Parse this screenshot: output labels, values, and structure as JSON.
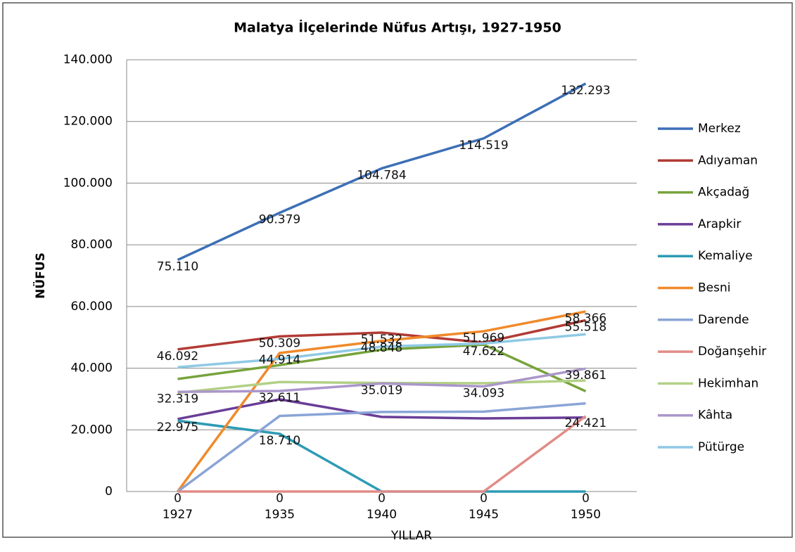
{
  "chart_data": {
    "type": "line",
    "title": "Malatya İlçelerinde Nüfus Artışı, 1927-1950",
    "x_label": "YILLAR",
    "y_label": "NÜFUS",
    "categories": [
      "1927",
      "1935",
      "1940",
      "1945",
      "1950"
    ],
    "ylim": [
      0,
      140000
    ],
    "yticks": [
      0,
      {
        "value": 20000,
        "label": "20.000"
      },
      {
        "value": 40000,
        "label": "40.000"
      },
      {
        "value": 60000,
        "label": "60.000"
      },
      {
        "value": 80000,
        "label": "80.000"
      },
      {
        "value": 100000,
        "label": "100.000"
      },
      {
        "value": 120000,
        "label": "120.000"
      },
      {
        "value": 140000,
        "label": "140.000"
      }
    ],
    "grid": true,
    "legend": "right",
    "series": [
      {
        "name": "Merkez",
        "color": "#3d6fb6",
        "values": [
          75110,
          90379,
          104784,
          114519,
          132293
        ],
        "value_labels": [
          "75.110",
          "90.379",
          "104.784",
          "114.519",
          "132.293"
        ]
      },
      {
        "name": "Adıyaman",
        "color": "#b23b35",
        "values": [
          46092,
          50309,
          51532,
          48300,
          55518
        ],
        "value_labels": [
          "46.092",
          "50.309",
          "51.532",
          null,
          "55.518"
        ]
      },
      {
        "name": "Akçadağ",
        "color": "#77a33b",
        "values": [
          36500,
          41000,
          46000,
          47622,
          32500
        ],
        "value_labels": [
          null,
          null,
          null,
          "47.622",
          null
        ]
      },
      {
        "name": "Arapkir",
        "color": "#6a3d97",
        "values": [
          23500,
          29900,
          24200,
          23700,
          24000
        ],
        "value_labels": [
          null,
          null,
          null,
          null,
          null
        ]
      },
      {
        "name": "Kemaliye",
        "color": "#2e9bb4",
        "values": [
          22975,
          18710,
          0,
          0,
          0
        ],
        "value_labels": [
          "22.975",
          "18.710",
          "0",
          null,
          "0"
        ]
      },
      {
        "name": "Besni",
        "color": "#f08a2a",
        "values": [
          0,
          44914,
          48848,
          51969,
          58366
        ],
        "value_labels": [
          "0",
          "44.914",
          "48.848",
          "51.969",
          "58.366"
        ]
      },
      {
        "name": "Darende",
        "color": "#8aa5d6",
        "values": [
          0,
          24500,
          25800,
          25900,
          28600
        ],
        "value_labels": [
          null,
          null,
          null,
          null,
          null
        ]
      },
      {
        "name": "Doğanşehir",
        "color": "#e08c88",
        "values": [
          0,
          0,
          0,
          0,
          24421
        ],
        "value_labels": [
          null,
          "0",
          null,
          "0",
          "24.421"
        ]
      },
      {
        "name": "Hekimhan",
        "color": "#b2d086",
        "values": [
          32000,
          35500,
          35200,
          35100,
          36000
        ],
        "value_labels": [
          null,
          null,
          null,
          null,
          null
        ]
      },
      {
        "name": "Kâhta",
        "color": "#ab96cb",
        "values": [
          32319,
          32611,
          35019,
          34093,
          39861
        ],
        "value_labels": [
          "32.319",
          "32.611",
          "35.019",
          "34.093",
          "39.861"
        ]
      },
      {
        "name": "Pütürge",
        "color": "#8fc9e4",
        "values": [
          40300,
          43000,
          47000,
          48000,
          51000
        ],
        "value_labels": [
          null,
          null,
          null,
          null,
          null
        ]
      }
    ]
  }
}
